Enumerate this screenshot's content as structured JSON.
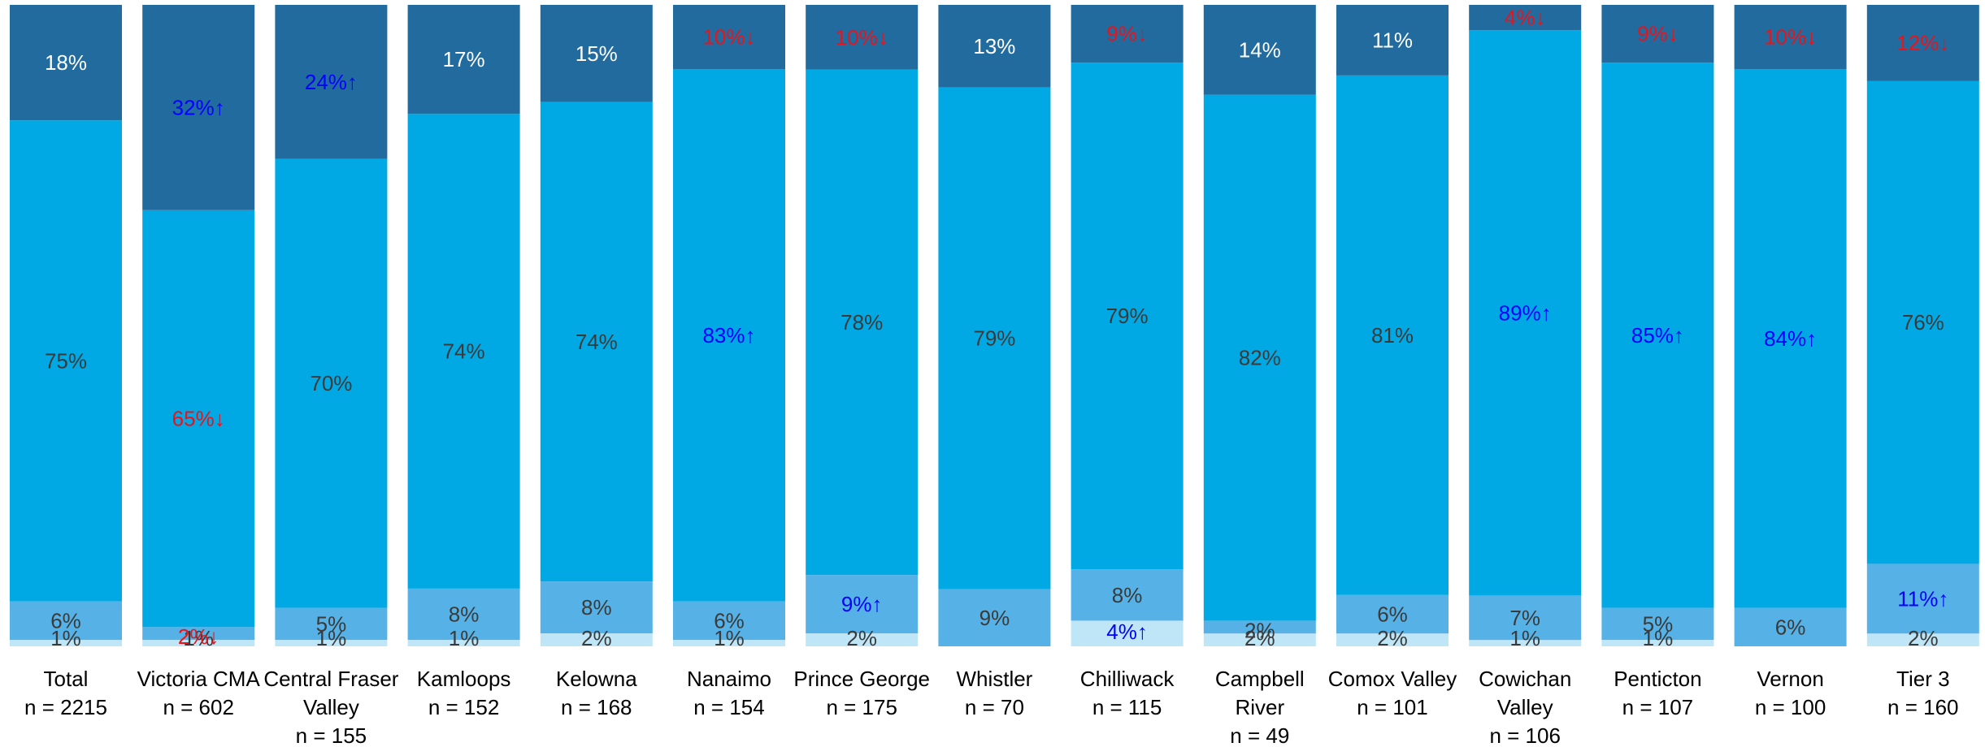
{
  "chart_data": {
    "type": "bar",
    "stacked": true,
    "orientation": "vertical",
    "normalized_to": 100,
    "legend": "none",
    "grid": false,
    "categories": [
      "Total\nn = 2215",
      "Victoria CMA\nn = 602",
      "Central Fraser\nValley\nn = 155",
      "Kamloops\nn = 152",
      "Kelowna\nn = 168",
      "Nanaimo\nn = 154",
      "Prince George\nn = 175",
      "Whistler\nn = 70",
      "Chilliwack\nn = 115",
      "Campbell\nRiver\nn = 49",
      "Comox Valley\nn = 101",
      "Cowichan\nValley\nn = 106",
      "Penticton\nn = 107",
      "Vernon\nn = 100",
      "Tier 3\nn = 160"
    ],
    "series": [
      {
        "color": "#bfe6f7",
        "values": [
          1,
          1,
          1,
          1,
          2,
          1,
          2,
          0,
          4,
          2,
          2,
          1,
          1,
          0,
          2
        ],
        "labels": [
          "1%",
          "1%",
          "1%",
          "1%",
          "2%",
          "1%",
          "2%",
          "",
          "4%↑",
          "2%",
          "2%",
          "1%",
          "1%",
          "",
          "2%"
        ],
        "label_status": [
          "n",
          "n",
          "n",
          "n",
          "n",
          "n",
          "n",
          "n",
          "up",
          "n",
          "n",
          "n",
          "n",
          "n",
          "n"
        ]
      },
      {
        "color": "#56b2e6",
        "values": [
          6,
          2,
          5,
          8,
          8,
          6,
          9,
          9,
          8,
          2,
          6,
          7,
          5,
          6,
          11
        ],
        "labels": [
          "6%",
          "2%↓",
          "5%",
          "8%",
          "8%",
          "6%",
          "9%↑",
          "9%",
          "8%",
          "2%",
          "6%",
          "7%",
          "5%",
          "6%",
          "11%↑"
        ],
        "label_status": [
          "n",
          "down",
          "n",
          "n",
          "n",
          "n",
          "up",
          "n",
          "n",
          "n",
          "n",
          "n",
          "n",
          "n",
          "up"
        ]
      },
      {
        "color": "#00a8e4",
        "values": [
          75,
          65,
          70,
          74,
          74,
          83,
          78,
          79,
          79,
          82,
          81,
          89,
          85,
          84,
          76
        ],
        "labels": [
          "75%",
          "65%↓",
          "70%",
          "74%",
          "74%",
          "83%↑",
          "78%",
          "79%",
          "79%",
          "82%",
          "81%",
          "89%↑",
          "85%↑",
          "84%↑",
          "76%"
        ],
        "label_status": [
          "n",
          "down",
          "n",
          "n",
          "n",
          "up",
          "n",
          "n",
          "n",
          "n",
          "n",
          "up",
          "up",
          "up",
          "n"
        ]
      },
      {
        "color": "#216b9f",
        "values": [
          18,
          32,
          24,
          17,
          15,
          10,
          10,
          13,
          9,
          14,
          11,
          4,
          9,
          10,
          12
        ],
        "labels": [
          "18%",
          "32%↑",
          "24%↑",
          "17%",
          "15%",
          "10%↓",
          "10%↓",
          "13%",
          "9%↓",
          "14%",
          "11%",
          "4%↓",
          "9%↓",
          "10%↓",
          "12%↓"
        ],
        "label_status": [
          "n",
          "up",
          "up",
          "n",
          "n",
          "down",
          "down",
          "n",
          "down",
          "n",
          "n",
          "down",
          "down",
          "down",
          "down"
        ]
      }
    ],
    "status_colors": {
      "up": "#0000ff",
      "down": "#e8141c",
      "n_on_light": "#3a3a3a",
      "n_on_dark": "#ffffff"
    }
  }
}
